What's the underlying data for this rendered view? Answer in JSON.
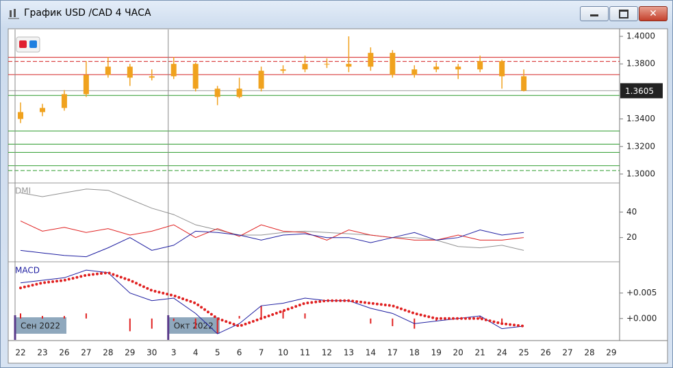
{
  "window": {
    "title": "График USD /CAD  4 ЧАСА"
  },
  "chart_data": [
    {
      "type": "candlestick",
      "categories": [
        "22",
        "23",
        "26",
        "27",
        "28",
        "29",
        "30",
        "3",
        "4",
        "5",
        "6",
        "7",
        "10",
        "11",
        "12",
        "13",
        "14",
        "17",
        "18",
        "19",
        "20",
        "21",
        "24",
        "25",
        "26",
        "27",
        "28",
        "29"
      ],
      "ylim": [
        1.294,
        1.405
      ],
      "yticks": [
        {
          "value": 1.4,
          "label": "1.4000"
        },
        {
          "value": 1.38,
          "label": "1.3800"
        },
        {
          "value": 1.34,
          "label": "1.3400"
        },
        {
          "value": 1.32,
          "label": "1.3200"
        },
        {
          "value": 1.3,
          "label": "1.3000"
        }
      ],
      "series": [
        {
          "color": "#f0a21e",
          "open": [
            1.34,
            1.345,
            1.348,
            1.358,
            1.372,
            1.378,
            1.37,
            1.371,
            1.38,
            1.362,
            1.356,
            1.362,
            1.375,
            1.376,
            1.38,
            1.38,
            1.378,
            1.388,
            1.372,
            1.376,
            1.378,
            1.376,
            1.382,
            1.371,
            null,
            null,
            null,
            null
          ],
          "high": [
            1.352,
            1.351,
            1.361,
            1.382,
            1.385,
            1.38,
            1.376,
            1.385,
            1.381,
            1.364,
            1.37,
            1.378,
            1.379,
            1.386,
            1.384,
            1.4,
            1.392,
            1.39,
            1.379,
            1.381,
            1.38,
            1.386,
            1.383,
            1.376,
            null,
            null,
            null,
            null
          ],
          "low": [
            1.337,
            1.342,
            1.346,
            1.356,
            1.37,
            1.364,
            1.368,
            1.369,
            1.36,
            1.35,
            1.355,
            1.36,
            1.373,
            1.374,
            1.377,
            1.374,
            1.375,
            1.37,
            1.37,
            1.374,
            1.369,
            1.374,
            1.362,
            1.36,
            null,
            null,
            null,
            null
          ],
          "close": [
            1.345,
            1.348,
            1.358,
            1.372,
            1.378,
            1.37,
            1.371,
            1.38,
            1.362,
            1.356,
            1.362,
            1.375,
            1.376,
            1.38,
            1.38,
            1.378,
            1.388,
            1.372,
            1.376,
            1.378,
            1.376,
            1.382,
            1.371,
            1.3605,
            null,
            null,
            null,
            null
          ]
        }
      ],
      "hlines": [
        {
          "value": 1.3848,
          "color": "#d42020",
          "style": "solid"
        },
        {
          "value": 1.3818,
          "color": "#d42020",
          "style": "dashed"
        },
        {
          "value": 1.3722,
          "color": "#d42020",
          "style": "solid"
        },
        {
          "value": 1.3571,
          "color": "#2a9a2a",
          "style": "solid"
        },
        {
          "value": 1.3313,
          "color": "#2a9a2a",
          "style": "solid"
        },
        {
          "value": 1.3217,
          "color": "#2a9a2a",
          "style": "solid"
        },
        {
          "value": 1.3157,
          "color": "#2a9a2a",
          "style": "solid"
        },
        {
          "value": 1.3061,
          "color": "#2a9a2a",
          "style": "solid"
        },
        {
          "value": 1.3025,
          "color": "#2a9a2a",
          "style": "dashed"
        }
      ],
      "last_price": {
        "value": 1.3605,
        "label": "1.3605",
        "color": "#a0a0a0"
      },
      "period_markers": [
        {
          "label": "Сен 2022",
          "at": "22"
        },
        {
          "label": "Окт 2022",
          "at": "3"
        }
      ]
    },
    {
      "type": "line",
      "title": "DMI",
      "ylim": [
        1.6,
        62.2
      ],
      "yticks": [
        20,
        40
      ],
      "series": [
        {
          "color": "#909090",
          "values": [
            55,
            52,
            55,
            58,
            57,
            50,
            43,
            38,
            30,
            26,
            22,
            22,
            24,
            25,
            24,
            23,
            22,
            20,
            20,
            18,
            13,
            12,
            14,
            10,
            null,
            null,
            null,
            null
          ]
        },
        {
          "color": "#e02020",
          "values": [
            33,
            25,
            28,
            24,
            27,
            22,
            25,
            30,
            20,
            27,
            21,
            30,
            25,
            24,
            18,
            26,
            22,
            20,
            18,
            18,
            22,
            18,
            18,
            20,
            null,
            null,
            null,
            null
          ]
        },
        {
          "color": "#1c1ca0",
          "values": [
            10,
            8,
            6,
            5,
            12,
            20,
            10,
            14,
            25,
            24,
            22,
            18,
            22,
            23,
            20,
            20,
            16,
            20,
            24,
            18,
            20,
            26,
            22,
            24,
            null,
            null,
            null,
            null
          ]
        }
      ]
    },
    {
      "type": "macd",
      "title": "MACD",
      "ylim": [
        -0.0042,
        0.011
      ],
      "yticks": [
        {
          "value": 0.005,
          "label": "+0.005"
        },
        {
          "value": 0,
          "label": "+0.000"
        }
      ],
      "macd": {
        "color": "#1c1ca0",
        "values": [
          0.007,
          0.0075,
          0.008,
          0.0095,
          0.009,
          0.005,
          0.0035,
          0.004,
          0.001,
          -0.003,
          -0.001,
          0.0025,
          0.003,
          0.004,
          0.0035,
          0.0035,
          0.002,
          0.001,
          -0.001,
          -0.0005,
          0,
          0.0005,
          -0.002,
          -0.0015,
          null,
          null,
          null,
          null
        ]
      },
      "signal": {
        "color": "#e02020",
        "values": [
          0.006,
          0.007,
          0.0075,
          0.0085,
          0.009,
          0.0075,
          0.0055,
          0.0045,
          0.003,
          0,
          -0.0015,
          0,
          0.0015,
          0.003,
          0.0035,
          0.0035,
          0.003,
          0.0025,
          0.001,
          0,
          0,
          0,
          -0.001,
          -0.0015,
          null,
          null,
          null,
          null
        ]
      },
      "histogram": {
        "color": "#e02020",
        "values": [
          0.001,
          0.0005,
          0.0005,
          0.001,
          0,
          -0.0025,
          -0.002,
          -0.0005,
          -0.002,
          -0.003,
          0.0005,
          0.0025,
          0.0015,
          0.001,
          0,
          0,
          -0.001,
          -0.0015,
          -0.002,
          -0.0005,
          0,
          0.0005,
          -0.001,
          0,
          null,
          null,
          null,
          null
        ]
      }
    }
  ]
}
